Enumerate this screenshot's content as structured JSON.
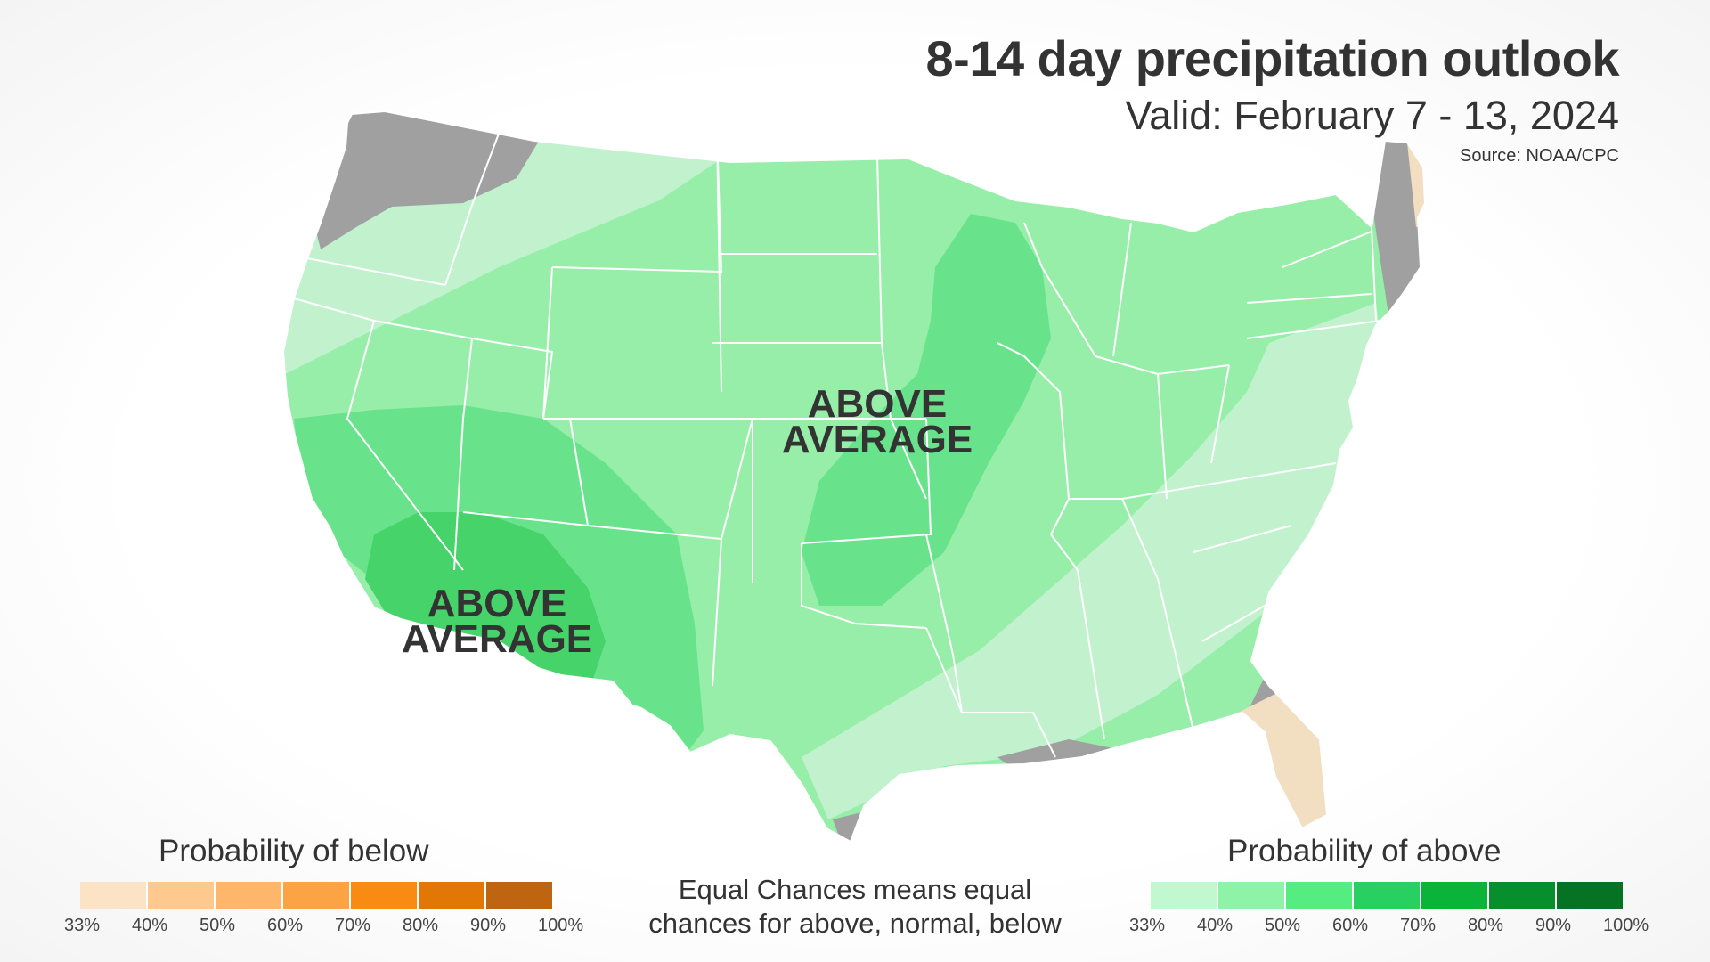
{
  "header": {
    "title": "8-14 day precipitation outlook",
    "subtitle": "Valid: February 7 - 13, 2024",
    "source": "Source: NOAA/CPC"
  },
  "map": {
    "labels": [
      {
        "line1": "ABOVE",
        "line2": "AVERAGE"
      },
      {
        "line1": "ABOVE",
        "line2": "AVERAGE"
      }
    ],
    "colors": {
      "equal_chances": "#a0a0a0",
      "above_33": "#c1f2cd",
      "above_40": "#96eea9",
      "above_50": "#69e38b",
      "above_60": "#45d36a",
      "below_33": "#f2dfc2",
      "state_lines": "#ffffff"
    }
  },
  "legend_below": {
    "title": "Probability of below",
    "ticks": [
      "33%",
      "40%",
      "50%",
      "60%",
      "70%",
      "80%",
      "90%",
      "100%"
    ],
    "colors": [
      "#fde3c5",
      "#fdc98e",
      "#fdb66a",
      "#fca343",
      "#f98b13",
      "#e37706",
      "#bf6410"
    ]
  },
  "legend_above": {
    "title": "Probability of above",
    "ticks": [
      "33%",
      "40%",
      "50%",
      "60%",
      "70%",
      "80%",
      "90%",
      "100%"
    ],
    "colors": [
      "#c1f8cf",
      "#8ef3a6",
      "#55ec81",
      "#27d060",
      "#09b439",
      "#068f2c",
      "#057323"
    ]
  },
  "note": {
    "line1": "Equal Chances means equal",
    "line2": "chances for above, normal, below"
  }
}
